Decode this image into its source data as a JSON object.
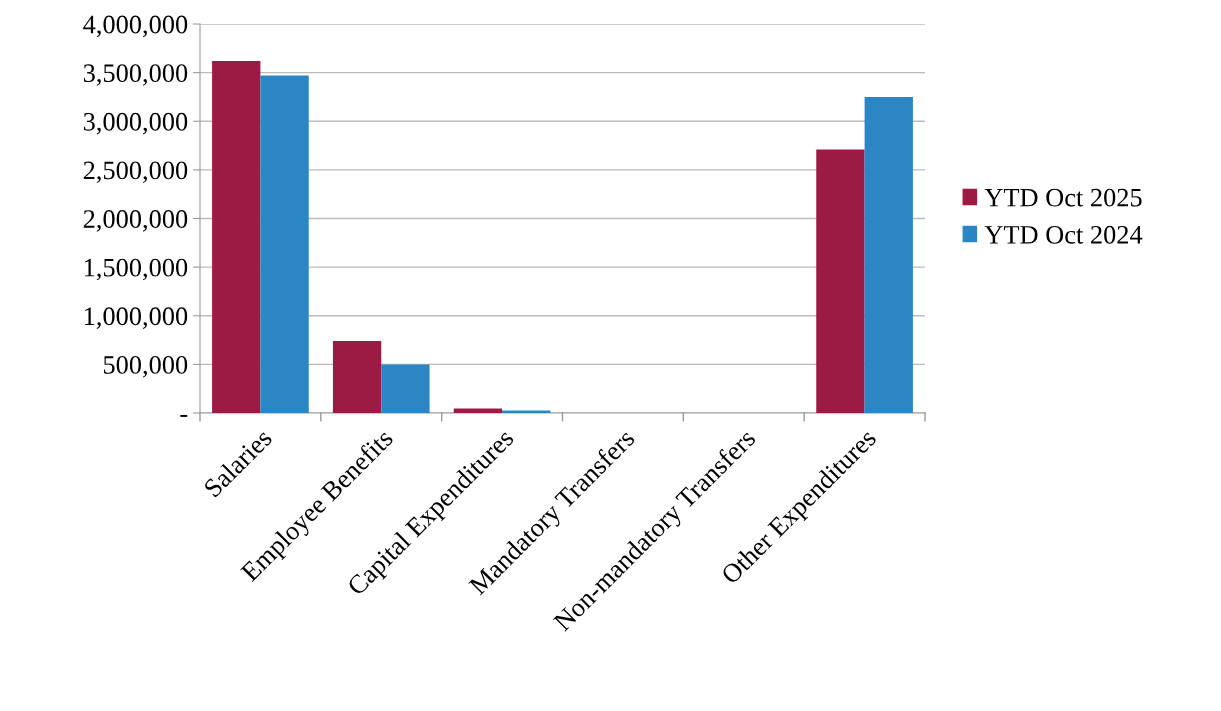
{
  "chart_data": {
    "type": "bar",
    "categories": [
      "Salaries",
      "Employee Benefits",
      "Capital Expenditures",
      "Mandatory Transfers",
      "Non-mandatory Transfers",
      "Other Expenditures"
    ],
    "series": [
      {
        "name": "YTD Oct 2025",
        "color": "#9b1b45",
        "values": [
          3620000,
          740000,
          45000,
          0,
          0,
          2710000
        ]
      },
      {
        "name": "YTD Oct 2024",
        "color": "#2b86c3",
        "values": [
          3470000,
          500000,
          25000,
          0,
          0,
          3250000
        ]
      }
    ],
    "ylim": [
      0,
      4000000
    ],
    "yticks": [
      {
        "value": 0,
        "label": "-"
      },
      {
        "value": 500000,
        "label": "500,000"
      },
      {
        "value": 1000000,
        "label": "1,000,000"
      },
      {
        "value": 1500000,
        "label": "1,500,000"
      },
      {
        "value": 2000000,
        "label": "2,000,000"
      },
      {
        "value": 2500000,
        "label": "2,500,000"
      },
      {
        "value": 3000000,
        "label": "3,000,000"
      },
      {
        "value": 3500000,
        "label": "3,500,000"
      },
      {
        "value": 4000000,
        "label": "4,000,000"
      }
    ],
    "grid": "y",
    "legend": "right"
  }
}
